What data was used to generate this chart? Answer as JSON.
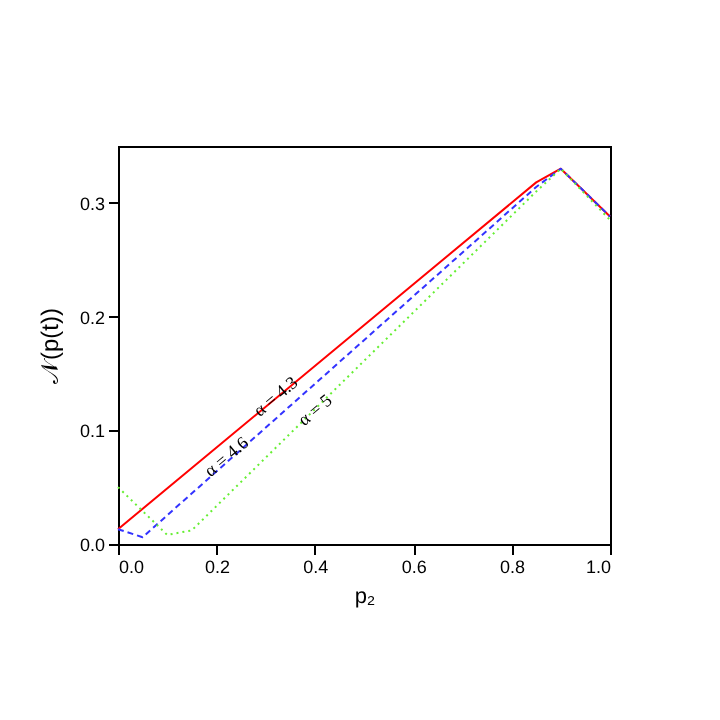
{
  "chart_data": {
    "type": "line",
    "xlabel": "p₂",
    "ylabel": "𝒩(p(t))",
    "xlim": [
      0,
      1
    ],
    "ylim": [
      0,
      0.35
    ],
    "xticks": [
      {
        "value": 0,
        "label": "0.0"
      },
      0.2,
      0.4,
      0.6,
      0.8,
      {
        "value": 1,
        "label": "1.0"
      }
    ],
    "yticks": [
      {
        "value": 0,
        "label": "0.0"
      },
      0.1,
      0.2,
      0.3
    ],
    "grid": false,
    "marker": "none",
    "series": [
      {
        "color": "#ff0000",
        "line_style": "solid",
        "x": [
          0,
          0.85,
          0.9,
          1.0
        ],
        "values": [
          0.013,
          0.318,
          0.33,
          0.288
        ]
      },
      {
        "color": "#3333ff",
        "line_style": "dashed",
        "x": [
          0,
          0.05,
          0.85,
          0.9,
          1.0
        ],
        "values": [
          0.013,
          0.006,
          0.314,
          0.33,
          0.288
        ]
      },
      {
        "color": "#66ee33",
        "line_style": "dotted",
        "x": [
          0,
          0.1,
          0.15,
          0.85,
          0.9,
          1.0
        ],
        "values": [
          0.05,
          0.008,
          0.012,
          0.31,
          0.33,
          0.285
        ]
      }
    ],
    "annotations": [
      {
        "text": "α = 4.3",
        "x": 0.32,
        "y": 0.13
      },
      {
        "text": "α = 4.6",
        "x": 0.22,
        "y": 0.077
      },
      {
        "text": "α = 5",
        "x": 0.4,
        "y": 0.118
      }
    ]
  }
}
